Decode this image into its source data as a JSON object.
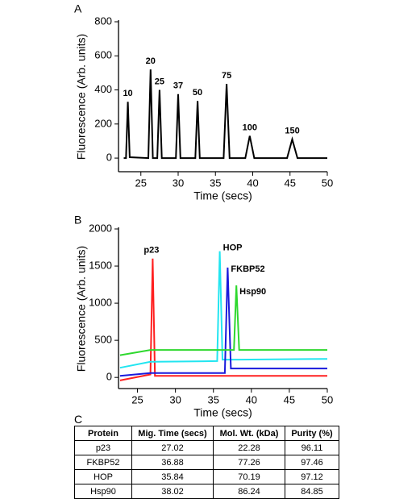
{
  "chart_data": [
    {
      "type": "line",
      "panel_label": "A",
      "x_label": "Time (secs)",
      "y_label": "Fluorescence (Arb. units)",
      "xlim": [
        22,
        50
      ],
      "ylim": [
        -80,
        800
      ],
      "xticks": [
        25,
        30,
        35,
        40,
        45,
        50
      ],
      "yticks": [
        0,
        200,
        400,
        600,
        800
      ],
      "x": [
        22.7,
        23.0,
        23.25,
        23.5,
        26.0,
        26.3,
        26.6,
        27.2,
        27.5,
        27.8,
        29.7,
        30.0,
        30.3,
        32.3,
        32.6,
        32.9,
        36.1,
        36.5,
        36.9,
        39.0,
        39.6,
        40.2,
        44.6,
        45.3,
        46.0,
        50.0
      ],
      "series": [
        {
          "color": "#000000",
          "values": [
            0,
            0,
            330,
            5,
            0,
            520,
            0,
            0,
            400,
            0,
            0,
            375,
            0,
            0,
            335,
            0,
            0,
            435,
            0,
            0,
            130,
            0,
            0,
            110,
            0,
            0
          ]
        }
      ],
      "annotations": [
        {
          "text": "10",
          "x": 23.25
        },
        {
          "text": "20",
          "x": 26.3
        },
        {
          "text": "25",
          "x": 27.5
        },
        {
          "text": "37",
          "x": 30.0
        },
        {
          "text": "50",
          "x": 32.6
        },
        {
          "text": "75",
          "x": 36.5
        },
        {
          "text": "100",
          "x": 39.6
        },
        {
          "text": "150",
          "x": 45.3
        }
      ]
    },
    {
      "type": "line",
      "panel_label": "B",
      "x_label": "Time (secs)",
      "y_label": "Fluorescence (Arb. units)",
      "xlim": [
        22.5,
        50
      ],
      "ylim": [
        -150,
        2000
      ],
      "xticks": [
        25,
        30,
        35,
        40,
        45,
        50
      ],
      "yticks": [
        0,
        500,
        1000,
        1500,
        2000
      ],
      "x": [
        22.7,
        26.7,
        27.0,
        27.3,
        35.5,
        35.84,
        36.2,
        36.5,
        36.88,
        37.3,
        37.7,
        38.02,
        38.4,
        50.0
      ],
      "series": [
        {
          "name": "p23",
          "color": "#ff2020",
          "values": [
            -40,
            40,
            1600,
            20,
            20,
            20,
            20,
            20,
            20,
            20,
            20,
            20,
            20,
            20
          ]
        },
        {
          "name": "HOP",
          "color": "#22e5f0",
          "values": [
            130,
            210,
            210,
            210,
            220,
            1700,
            240,
            240,
            240,
            240,
            240,
            240,
            240,
            250
          ]
        },
        {
          "name": "FKBP52",
          "color": "#1a1adc",
          "values": [
            20,
            60,
            60,
            60,
            60,
            60,
            60,
            60,
            1480,
            120,
            120,
            120,
            120,
            120
          ]
        },
        {
          "name": "Hsp90",
          "color": "#2ed82e",
          "values": [
            300,
            370,
            370,
            370,
            370,
            370,
            370,
            370,
            370,
            370,
            370,
            1240,
            370,
            370
          ]
        }
      ]
    }
  ],
  "table": {
    "panel_label": "C",
    "columns": [
      "Protein",
      "Mig. Time (secs)",
      "Mol. Wt. (kDa)",
      "Purity (%)"
    ],
    "rows": [
      [
        "p23",
        "27.02",
        "22.28",
        "96.11"
      ],
      [
        "FKBP52",
        "36.88",
        "77.26",
        "97.46"
      ],
      [
        "HOP",
        "35.84",
        "70.19",
        "97.12"
      ],
      [
        "Hsp90",
        "38.02",
        "86.24",
        "84.85"
      ]
    ]
  }
}
